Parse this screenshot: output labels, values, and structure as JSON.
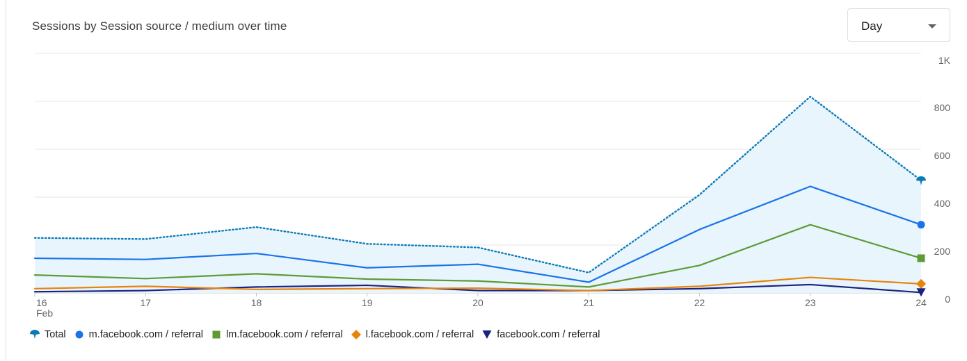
{
  "title": "Sessions by Session source / medium over time",
  "granularity": {
    "selected": "Day",
    "icon": "chevron-down-icon"
  },
  "chart_data": {
    "type": "line",
    "title": "Sessions by Session source / medium over time",
    "categories": [
      "16",
      "17",
      "18",
      "19",
      "20",
      "21",
      "22",
      "23",
      "24"
    ],
    "category_sublabels": {
      "16": "Feb"
    },
    "ylim": [
      0,
      1000
    ],
    "yticks": [
      0,
      200,
      400,
      600,
      800,
      1000
    ],
    "ytick_labels": [
      "0",
      "200",
      "400",
      "600",
      "800",
      "1K"
    ],
    "y_axis_position": "right",
    "grid": true,
    "legend_position": "bottom-left",
    "series": [
      {
        "name": "Total",
        "values": [
          230,
          225,
          275,
          205,
          190,
          85,
          410,
          820,
          470
        ],
        "color": "#0b7bb8",
        "style": "dotted",
        "fill": "#e8f5fd",
        "marker": "pin"
      },
      {
        "name": "m.facebook.com / referral",
        "values": [
          145,
          140,
          165,
          105,
          120,
          45,
          265,
          445,
          285
        ],
        "color": "#1a73e8",
        "style": "solid",
        "marker": "circle"
      },
      {
        "name": "lm.facebook.com / referral",
        "values": [
          75,
          60,
          80,
          58,
          50,
          25,
          115,
          285,
          145
        ],
        "color": "#5e9b35",
        "style": "solid",
        "marker": "square"
      },
      {
        "name": "l.facebook.com / referral",
        "values": [
          18,
          28,
          15,
          18,
          20,
          10,
          28,
          65,
          38
        ],
        "color": "#e8830c",
        "style": "solid",
        "marker": "diamond"
      },
      {
        "name": "facebook.com / referral",
        "values": [
          5,
          10,
          25,
          32,
          10,
          10,
          18,
          35,
          2
        ],
        "color": "#1a237e",
        "style": "solid",
        "marker": "triangle-down"
      }
    ]
  }
}
